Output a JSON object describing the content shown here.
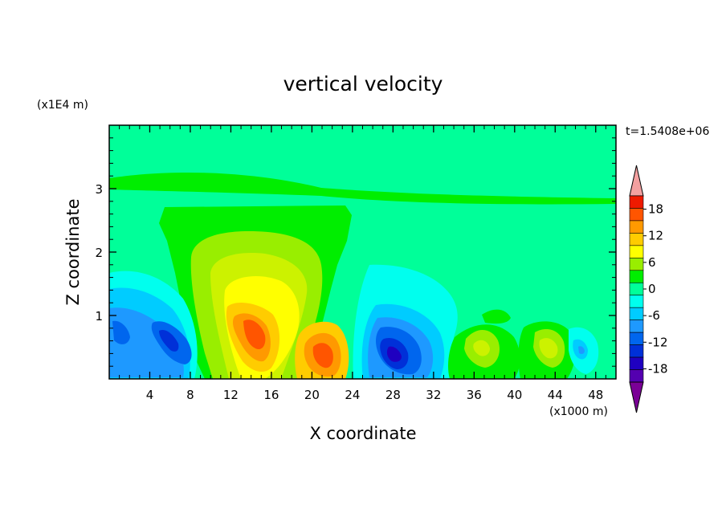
{
  "chart_data": {
    "type": "heatmap",
    "title": "vertical velocity",
    "xlabel": "X coordinate",
    "ylabel": "Z coordinate",
    "x_unit": "(x1000 m)",
    "y_unit": "(x1E4 m)",
    "time_label": "t=1.5408e+06",
    "xlim": [
      0,
      50
    ],
    "ylim": [
      0,
      4
    ],
    "x_ticks": [
      4,
      8,
      12,
      16,
      20,
      24,
      28,
      32,
      36,
      40,
      44,
      48
    ],
    "y_ticks": [
      1,
      2,
      3
    ],
    "colorbar": {
      "levels": [
        -21,
        -18,
        -15,
        -12,
        -9,
        -6,
        -3,
        0,
        3,
        6,
        9,
        12,
        15,
        18,
        21
      ],
      "tick_labels": [
        "18",
        "12",
        "6",
        "0",
        "-6",
        "-12",
        "-18"
      ],
      "tick_values": [
        18,
        12,
        6,
        0,
        -6,
        -12,
        -18
      ],
      "extend": "both",
      "colors": [
        "#7a0096",
        "#5400b0",
        "#1f00c0",
        "#0030d8",
        "#0066ee",
        "#1e99ff",
        "#00ccff",
        "#00ffee",
        "#00ff99",
        "#00ee00",
        "#99ee00",
        "#ffff00",
        "#ffcc00",
        "#ff9900",
        "#ff5500",
        "#ee1a00",
        "#f3a0a0"
      ]
    },
    "features": [
      {
        "kind": "updraft",
        "x": 14.5,
        "z": 0.8,
        "peak": 12
      },
      {
        "kind": "updraft",
        "x": 21,
        "z": 0.45,
        "peak": 13
      },
      {
        "kind": "downdraft",
        "x": 28,
        "z": 0.4,
        "peak": -13
      },
      {
        "kind": "downdraft",
        "x": 5,
        "z": 0.6,
        "peak": -9
      },
      {
        "kind": "updraft",
        "x": 37,
        "z": 0.55,
        "peak": 6
      },
      {
        "kind": "updraft",
        "x": 44,
        "z": 0.45,
        "peak": 6
      }
    ]
  }
}
